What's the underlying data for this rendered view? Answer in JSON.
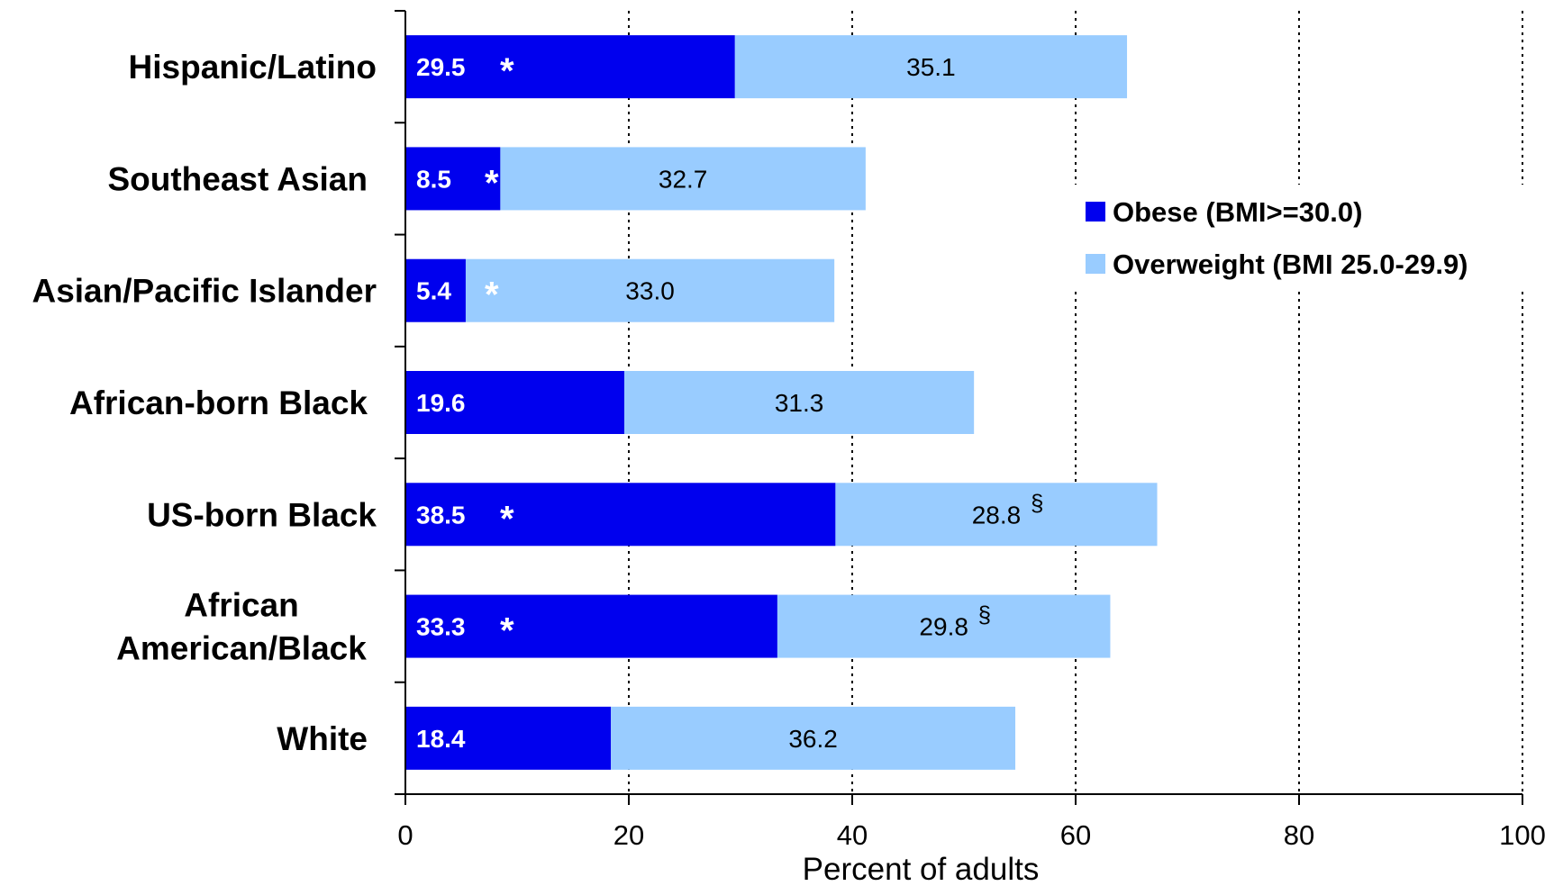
{
  "chart_data": {
    "type": "bar",
    "orientation": "horizontal",
    "stacked": true,
    "categories": [
      [
        "Hispanic/Latino"
      ],
      [
        "Southeast Asian"
      ],
      [
        "Asian/Pacific Islander"
      ],
      [
        "African-born Black"
      ],
      [
        "US-born Black"
      ],
      [
        "African",
        "American/Black"
      ],
      [
        "White"
      ]
    ],
    "series": [
      {
        "name": "Obese (BMI>=30.0)",
        "color": "#0000ee",
        "values": [
          29.5,
          8.5,
          5.4,
          19.6,
          38.5,
          33.3,
          18.4
        ],
        "labels": [
          "29.5",
          "8.5",
          "5.4",
          "19.6",
          "38.5",
          "33.3",
          "18.4"
        ],
        "marks": [
          "*",
          "*",
          "*",
          "",
          "*",
          "*",
          ""
        ]
      },
      {
        "name": "Overweight (BMI 25.0-29.9)",
        "color": "#99ccff",
        "values": [
          35.1,
          32.7,
          33.0,
          31.3,
          28.8,
          29.8,
          36.2
        ],
        "labels": [
          "35.1",
          "32.7",
          "33.0",
          "31.3",
          "28.8",
          "29.8",
          "36.2"
        ],
        "marks": [
          "",
          "",
          "",
          "",
          "§",
          "§",
          ""
        ]
      }
    ],
    "xlabel": "Percent of adults",
    "xlim": [
      0,
      100
    ],
    "xticks": [
      "0",
      "20",
      "40",
      "60",
      "80",
      "100"
    ],
    "xtick_values": [
      0,
      20,
      40,
      60,
      80,
      100
    ],
    "grid": "vertical dotted",
    "legend_position": "right"
  }
}
